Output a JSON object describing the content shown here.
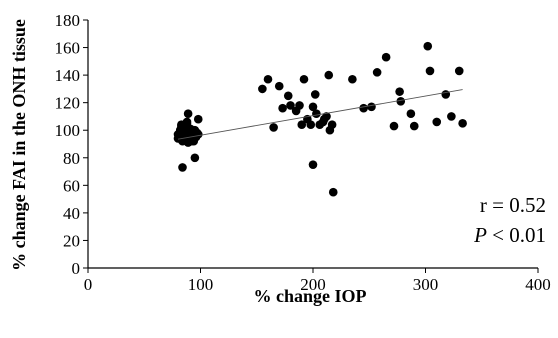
{
  "chart_data": {
    "type": "scatter",
    "title": "",
    "xlabel": "% change IOP",
    "ylabel": "% change  FAI in the ONH tissue",
    "xlim": [
      0,
      400
    ],
    "ylim": [
      0,
      180
    ],
    "xticks": [
      0,
      100,
      200,
      300,
      400
    ],
    "yticks": [
      0,
      20,
      40,
      60,
      80,
      100,
      120,
      140,
      160,
      180
    ],
    "grid": false,
    "legend": "none",
    "point_color": "#000000",
    "trendline": {
      "x": [
        80,
        333
      ],
      "y": [
        93.5,
        129.5
      ],
      "color": "#555555"
    },
    "annotations": {
      "r": "r = 0.52",
      "p_letter": "P",
      "p_rest": " < 0.01"
    },
    "series": [
      {
        "x": [
          80,
          82,
          83,
          84,
          85,
          86,
          87,
          88,
          89,
          90,
          91,
          92,
          93,
          94,
          95,
          96,
          97,
          98,
          80,
          83,
          86,
          89,
          92,
          95,
          82,
          85,
          88,
          91,
          84,
          93,
          85,
          88,
          95,
          98,
          155,
          160,
          165,
          170,
          173,
          178,
          180,
          185,
          188,
          190,
          192,
          195,
          198,
          200,
          203,
          206,
          209,
          212,
          214,
          217,
          200,
          202,
          210,
          215,
          218,
          235,
          245,
          252,
          257,
          265,
          272,
          277,
          278,
          287,
          290,
          302,
          304,
          310,
          318,
          323,
          330,
          333
        ],
        "y": [
          97,
          100,
          104,
          92,
          98,
          102,
          95,
          105,
          91,
          99,
          96,
          94,
          97,
          92,
          100,
          95,
          98,
          108,
          94,
          103,
          100,
          112,
          92,
          96,
          100,
          98,
          97,
          101,
          73,
          94,
          93,
          106,
          80,
          97,
          130,
          137,
          102,
          132,
          116,
          125,
          118,
          114,
          118,
          104,
          137,
          108,
          104,
          117,
          112,
          104,
          106,
          110,
          140,
          104,
          75,
          126,
          108,
          100,
          55,
          137,
          116,
          117,
          142,
          153,
          103,
          128,
          121,
          112,
          103,
          161,
          143,
          106,
          126,
          110,
          143,
          105
        ]
      }
    ]
  }
}
